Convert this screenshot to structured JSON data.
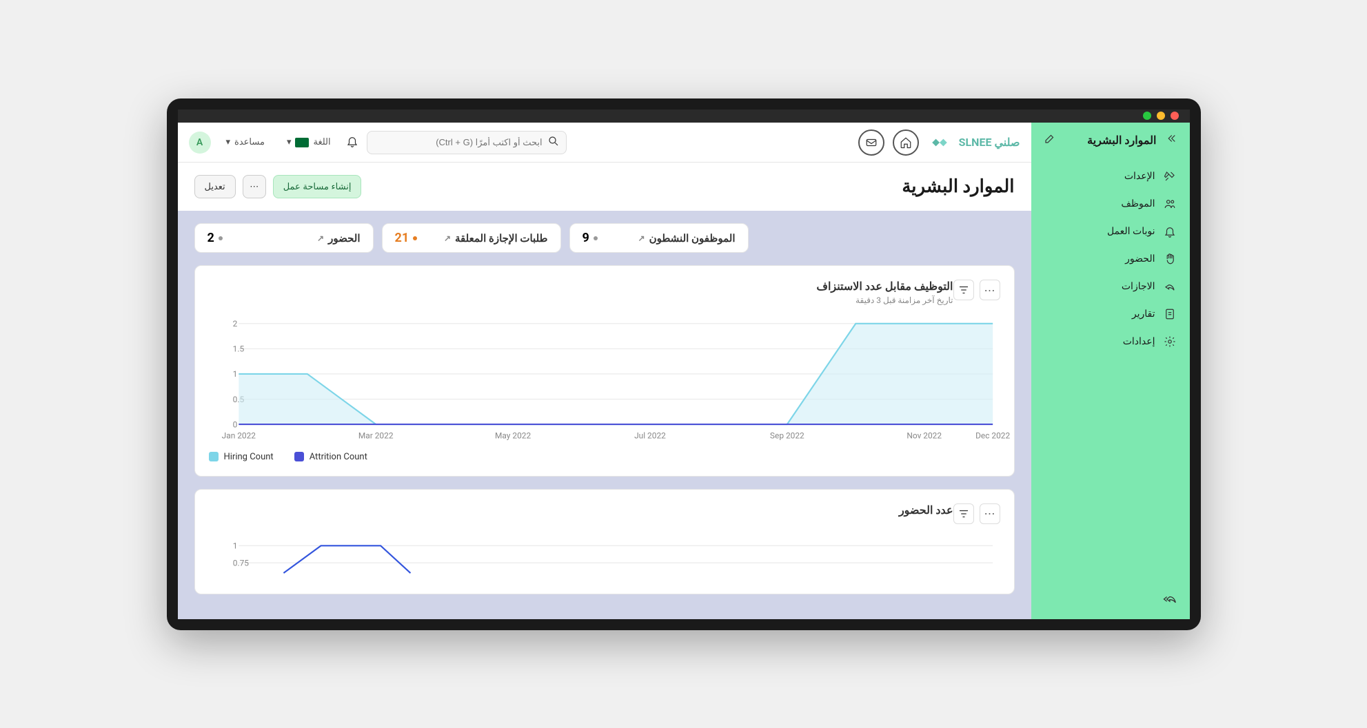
{
  "sidebar": {
    "title": "الموارد البشرية",
    "items": [
      {
        "label": "الإعدات"
      },
      {
        "label": "الموظف"
      },
      {
        "label": "نوبات العمل"
      },
      {
        "label": "الحضور"
      },
      {
        "label": "الاجازات"
      },
      {
        "label": "تقارير"
      },
      {
        "label": "إعدادات"
      }
    ]
  },
  "topbar": {
    "logo_text": "صلني SLNEE",
    "search_placeholder": "ابحث أو اكتب أمرًا (Ctrl + G)",
    "language_label": "اللغة",
    "help_label": "مساعدة",
    "avatar_letter": "A"
  },
  "page": {
    "title": "الموارد البشرية",
    "create_workspace_btn": "إنشاء مساحة عمل",
    "edit_btn": "تعديل"
  },
  "stats": [
    {
      "label": "الموظفون النشطون",
      "value": "9",
      "color": "normal"
    },
    {
      "label": "طلبات الإجازة المعلقة",
      "value": "21",
      "color": "orange"
    },
    {
      "label": "الحضور",
      "value": "2",
      "color": "normal"
    }
  ],
  "chart1": {
    "title": "التوظيف مقابل عدد الاستنزاف",
    "subtitle": "تاريخ آخر مزامنة قبل 3 دقيقة",
    "type": "line",
    "x_labels": [
      "Jan 2022",
      "Mar 2022",
      "May 2022",
      "Jul 2022",
      "Sep 2022",
      "Nov 2022",
      "Dec 2022"
    ],
    "y_ticks": [
      0,
      0.5,
      1,
      1.5,
      2
    ],
    "ylim": [
      0,
      2
    ],
    "series": [
      {
        "name": "Hiring Count",
        "color": "#7dd5e8",
        "fill_color": "#d1eff7",
        "points": [
          {
            "x": "Jan 2022",
            "y": 1
          },
          {
            "x": "Feb 2022",
            "y": 1
          },
          {
            "x": "Mar 2022",
            "y": 0
          },
          {
            "x": "Apr 2022",
            "y": 0
          },
          {
            "x": "May 2022",
            "y": 0
          },
          {
            "x": "Jun 2022",
            "y": 0
          },
          {
            "x": "Jul 2022",
            "y": 0
          },
          {
            "x": "Aug 2022",
            "y": 0
          },
          {
            "x": "Sep 2022",
            "y": 0
          },
          {
            "x": "Oct 2022",
            "y": 2
          },
          {
            "x": "Nov 2022",
            "y": 2
          },
          {
            "x": "Dec 2022",
            "y": 2
          }
        ]
      },
      {
        "name": "Attrition Count",
        "color": "#4a4fd6",
        "fill_color": "none",
        "points": [
          {
            "x": "Jan 2022",
            "y": 0
          },
          {
            "x": "Dec 2022",
            "y": 0
          }
        ]
      }
    ],
    "grid_color": "#e8e8e8",
    "axis_color": "#ccc",
    "label_fontsize": 11,
    "label_color": "#888",
    "background_color": "#ffffff"
  },
  "chart2": {
    "title": "عدد الحضور",
    "type": "line",
    "y_ticks": [
      0.75,
      1
    ],
    "series_color": "#3355dd",
    "background_color": "#ffffff"
  }
}
